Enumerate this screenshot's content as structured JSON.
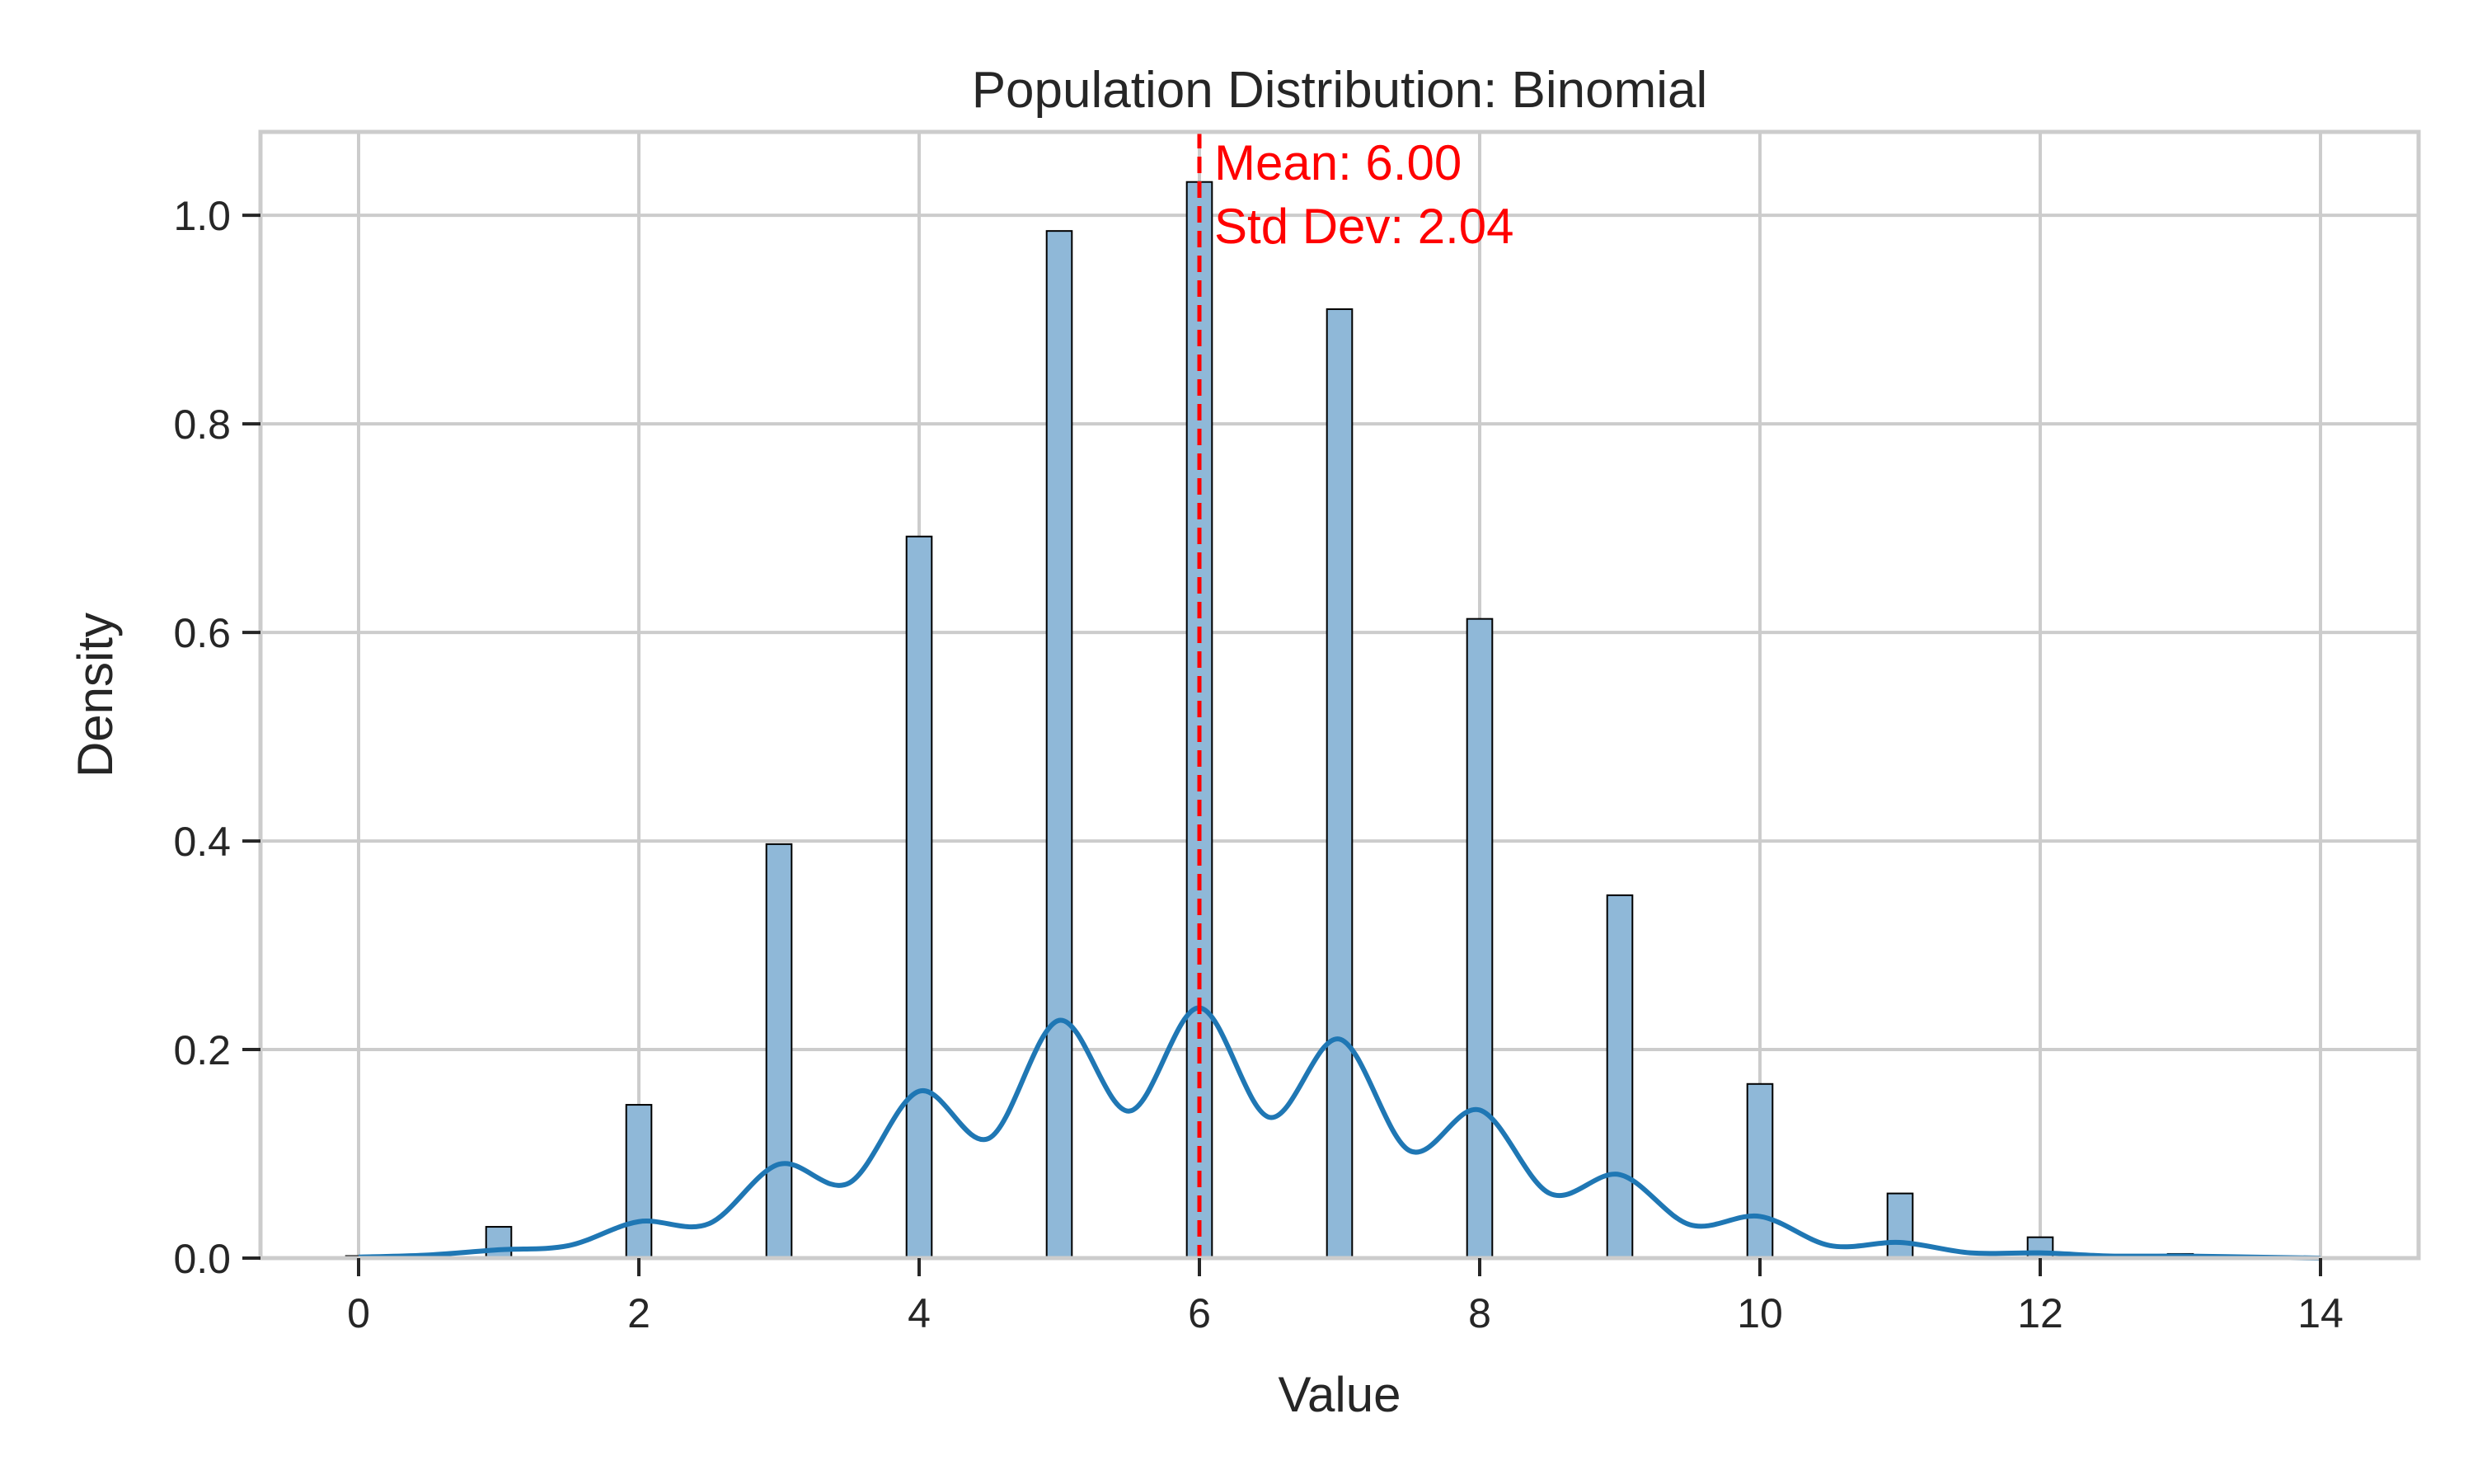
{
  "chart_data": {
    "type": "bar",
    "title": "Population Distribution: Binomial",
    "xlabel": "Value",
    "ylabel": "Density",
    "xlim": [
      -0.7,
      14.7
    ],
    "ylim": [
      0,
      1.08
    ],
    "xticks": [
      0,
      2,
      4,
      6,
      8,
      10,
      12,
      14
    ],
    "xtick_labels": [
      "0",
      "2",
      "4",
      "6",
      "8",
      "10",
      "12",
      "14"
    ],
    "yticks": [
      0.0,
      0.2,
      0.4,
      0.6,
      0.8,
      1.0
    ],
    "ytick_labels": [
      "0.0",
      "0.2",
      "0.4",
      "0.6",
      "0.8",
      "1.0"
    ],
    "grid": true,
    "histogram": {
      "x": [
        0,
        1,
        2,
        3,
        4,
        5,
        6,
        7,
        8,
        9,
        10,
        11,
        12,
        13,
        14
      ],
      "density": [
        0.002,
        0.03,
        0.147,
        0.397,
        0.692,
        0.985,
        1.032,
        0.91,
        0.613,
        0.348,
        0.167,
        0.062,
        0.02,
        0.004,
        0.001
      ],
      "fill_color": "#8fb8d8",
      "edge_color": "#000000"
    },
    "kde": {
      "x": [
        0,
        0.5,
        1,
        1.5,
        2,
        2.5,
        3,
        3.5,
        4,
        4.5,
        5,
        5.5,
        6,
        6.5,
        7,
        7.5,
        8,
        8.5,
        9,
        9.5,
        10,
        10.5,
        11,
        11.5,
        12,
        12.5,
        13,
        13.5,
        14
      ],
      "y": [
        0.001,
        0.003,
        0.008,
        0.012,
        0.035,
        0.033,
        0.09,
        0.072,
        0.16,
        0.115,
        0.228,
        0.141,
        0.24,
        0.135,
        0.21,
        0.103,
        0.142,
        0.062,
        0.08,
        0.032,
        0.04,
        0.012,
        0.015,
        0.005,
        0.005,
        0.002,
        0.002,
        0.001,
        0.0
      ],
      "color": "#1f77b4"
    },
    "mean_line": {
      "x": 6.0,
      "color": "#ff0000",
      "style": "dashed"
    },
    "annotations": [
      "Mean: 6.00",
      "Std Dev: 2.04"
    ]
  }
}
